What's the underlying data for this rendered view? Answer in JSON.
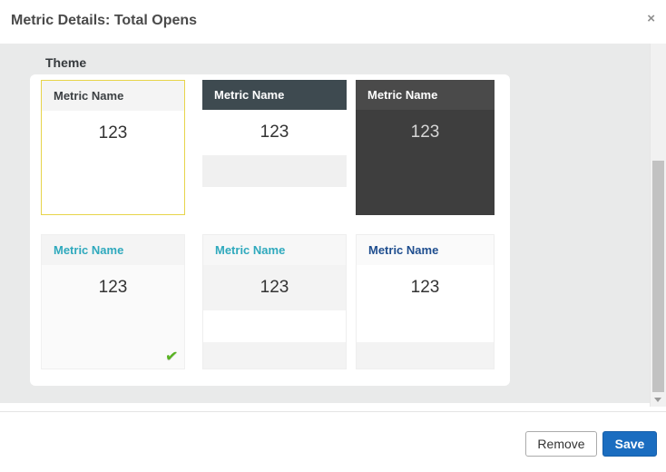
{
  "modal": {
    "title": "Metric Details: Total Opens",
    "close_glyph": "×"
  },
  "theme_section": {
    "label": "Theme"
  },
  "themes": {
    "check_glyph": "✔",
    "cards": [
      {
        "name": "Metric Name",
        "value": "123",
        "selected": true,
        "checked": false,
        "card_style": "background:#ffffff;border:1px solid #e7d44a",
        "header_style": "background:#f4f4f4;color:#3c4043",
        "value_style": "background:#ffffff;color:#333333",
        "stripe1_style": "background:#ffffff",
        "stripe2_style": "background:#ffffff"
      },
      {
        "name": "Metric Name",
        "value": "123",
        "selected": false,
        "checked": false,
        "card_style": "background:#ffffff",
        "header_style": "background:#3e4a50;color:#ffffff",
        "value_style": "background:#ffffff;color:#333333",
        "stripe1_style": "background:#f0f0f0",
        "stripe2_style": "background:#ffffff"
      },
      {
        "name": "Metric Name",
        "value": "123",
        "selected": false,
        "checked": false,
        "card_style": "background:#3e3e3e",
        "header_style": "background:#4a4a4a;color:#ffffff",
        "value_style": "background:#3e3e3e;color:#d6d6d6",
        "stripe1_style": "background:#3e3e3e",
        "stripe2_style": "background:#3e3e3e"
      },
      {
        "name": "Metric Name",
        "value": "123",
        "selected": false,
        "checked": true,
        "card_style": "background:#fafafa;border:1px solid #f0f0f0",
        "header_style": "background:#f4f4f4;color:#2fa9bd",
        "value_style": "background:#fafafa;color:#333333",
        "stripe1_style": "background:#fafafa",
        "stripe2_style": "background:#fafafa"
      },
      {
        "name": "Metric Name",
        "value": "123",
        "selected": false,
        "checked": false,
        "card_style": "background:#f3f3f3;border:1px solid #eeeeee",
        "header_style": "background:#f7f7f7;color:#2fa9bd",
        "value_style": "background:#f3f3f3;color:#333333",
        "stripe1_style": "background:#ffffff",
        "stripe2_style": "background:#f3f3f3"
      },
      {
        "name": "Metric Name",
        "value": "123",
        "selected": false,
        "checked": false,
        "card_style": "background:#ffffff;border:1px solid #eeeeee",
        "header_style": "background:#fafafa;color:#1f4e8f",
        "value_style": "background:#ffffff;color:#333333",
        "stripe1_style": "background:#ffffff",
        "stripe2_style": "background:#f3f3f3"
      }
    ]
  },
  "footer": {
    "remove_label": "Remove",
    "save_label": "Save"
  },
  "colors": {
    "accent_yellow": "#e7d44a",
    "teal": "#2fa9bd",
    "navy": "#1f4e8f",
    "slate_header": "#3e4a50",
    "dark_body": "#3e3e3e",
    "save_blue": "#1b6dc0",
    "check_green": "#58b321",
    "body_gray": "#e9eaea"
  }
}
